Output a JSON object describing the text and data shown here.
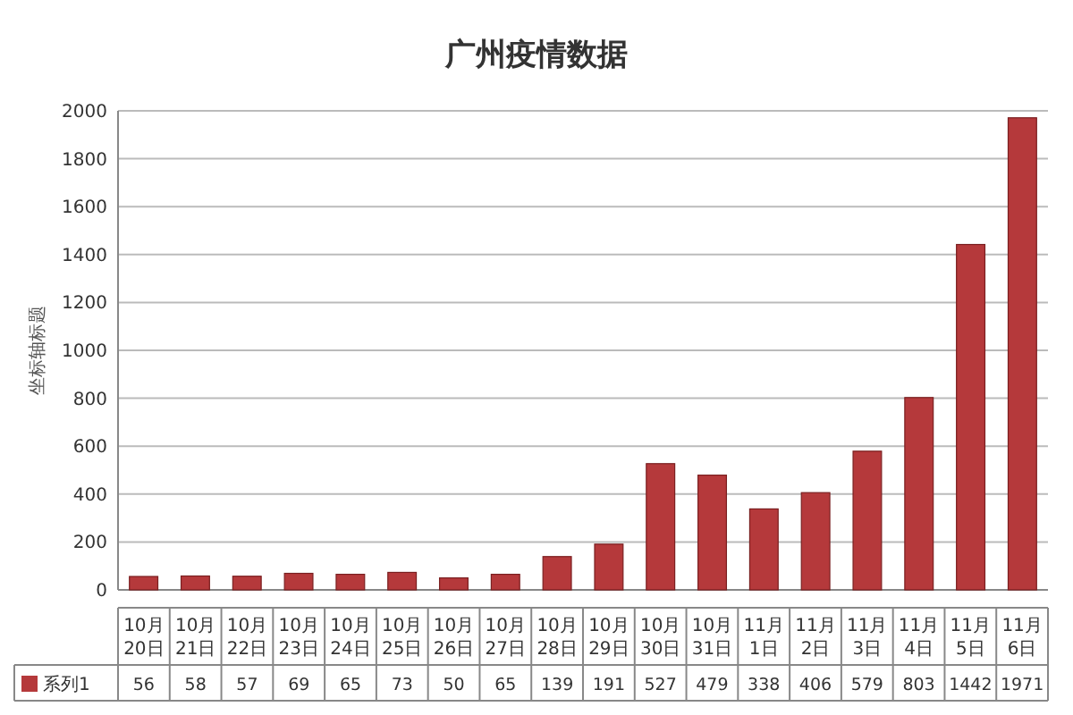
{
  "chart_data": {
    "type": "bar",
    "title": "广州疫情数据",
    "ylabel": "坐标轴标题",
    "categories": [
      "10月20日",
      "10月21日",
      "10月22日",
      "10月23日",
      "10月24日",
      "10月25日",
      "10月26日",
      "10月27日",
      "10月28日",
      "10月29日",
      "10月30日",
      "10月31日",
      "11月1日",
      "11月2日",
      "11月3日",
      "11月4日",
      "11月5日",
      "11月6日"
    ],
    "series": [
      {
        "name": "系列1",
        "color": "#b5393b",
        "values": [
          56,
          58,
          57,
          69,
          65,
          73,
          50,
          65,
          139,
          191,
          527,
          479,
          338,
          406,
          579,
          803,
          1442,
          1971
        ]
      }
    ],
    "ylim": [
      0,
      2000
    ],
    "yticks": [
      0,
      200,
      400,
      600,
      800,
      1000,
      1200,
      1400,
      1600,
      1800,
      2000
    ],
    "grid": "y",
    "legend": "bottom",
    "data_labels": true
  }
}
